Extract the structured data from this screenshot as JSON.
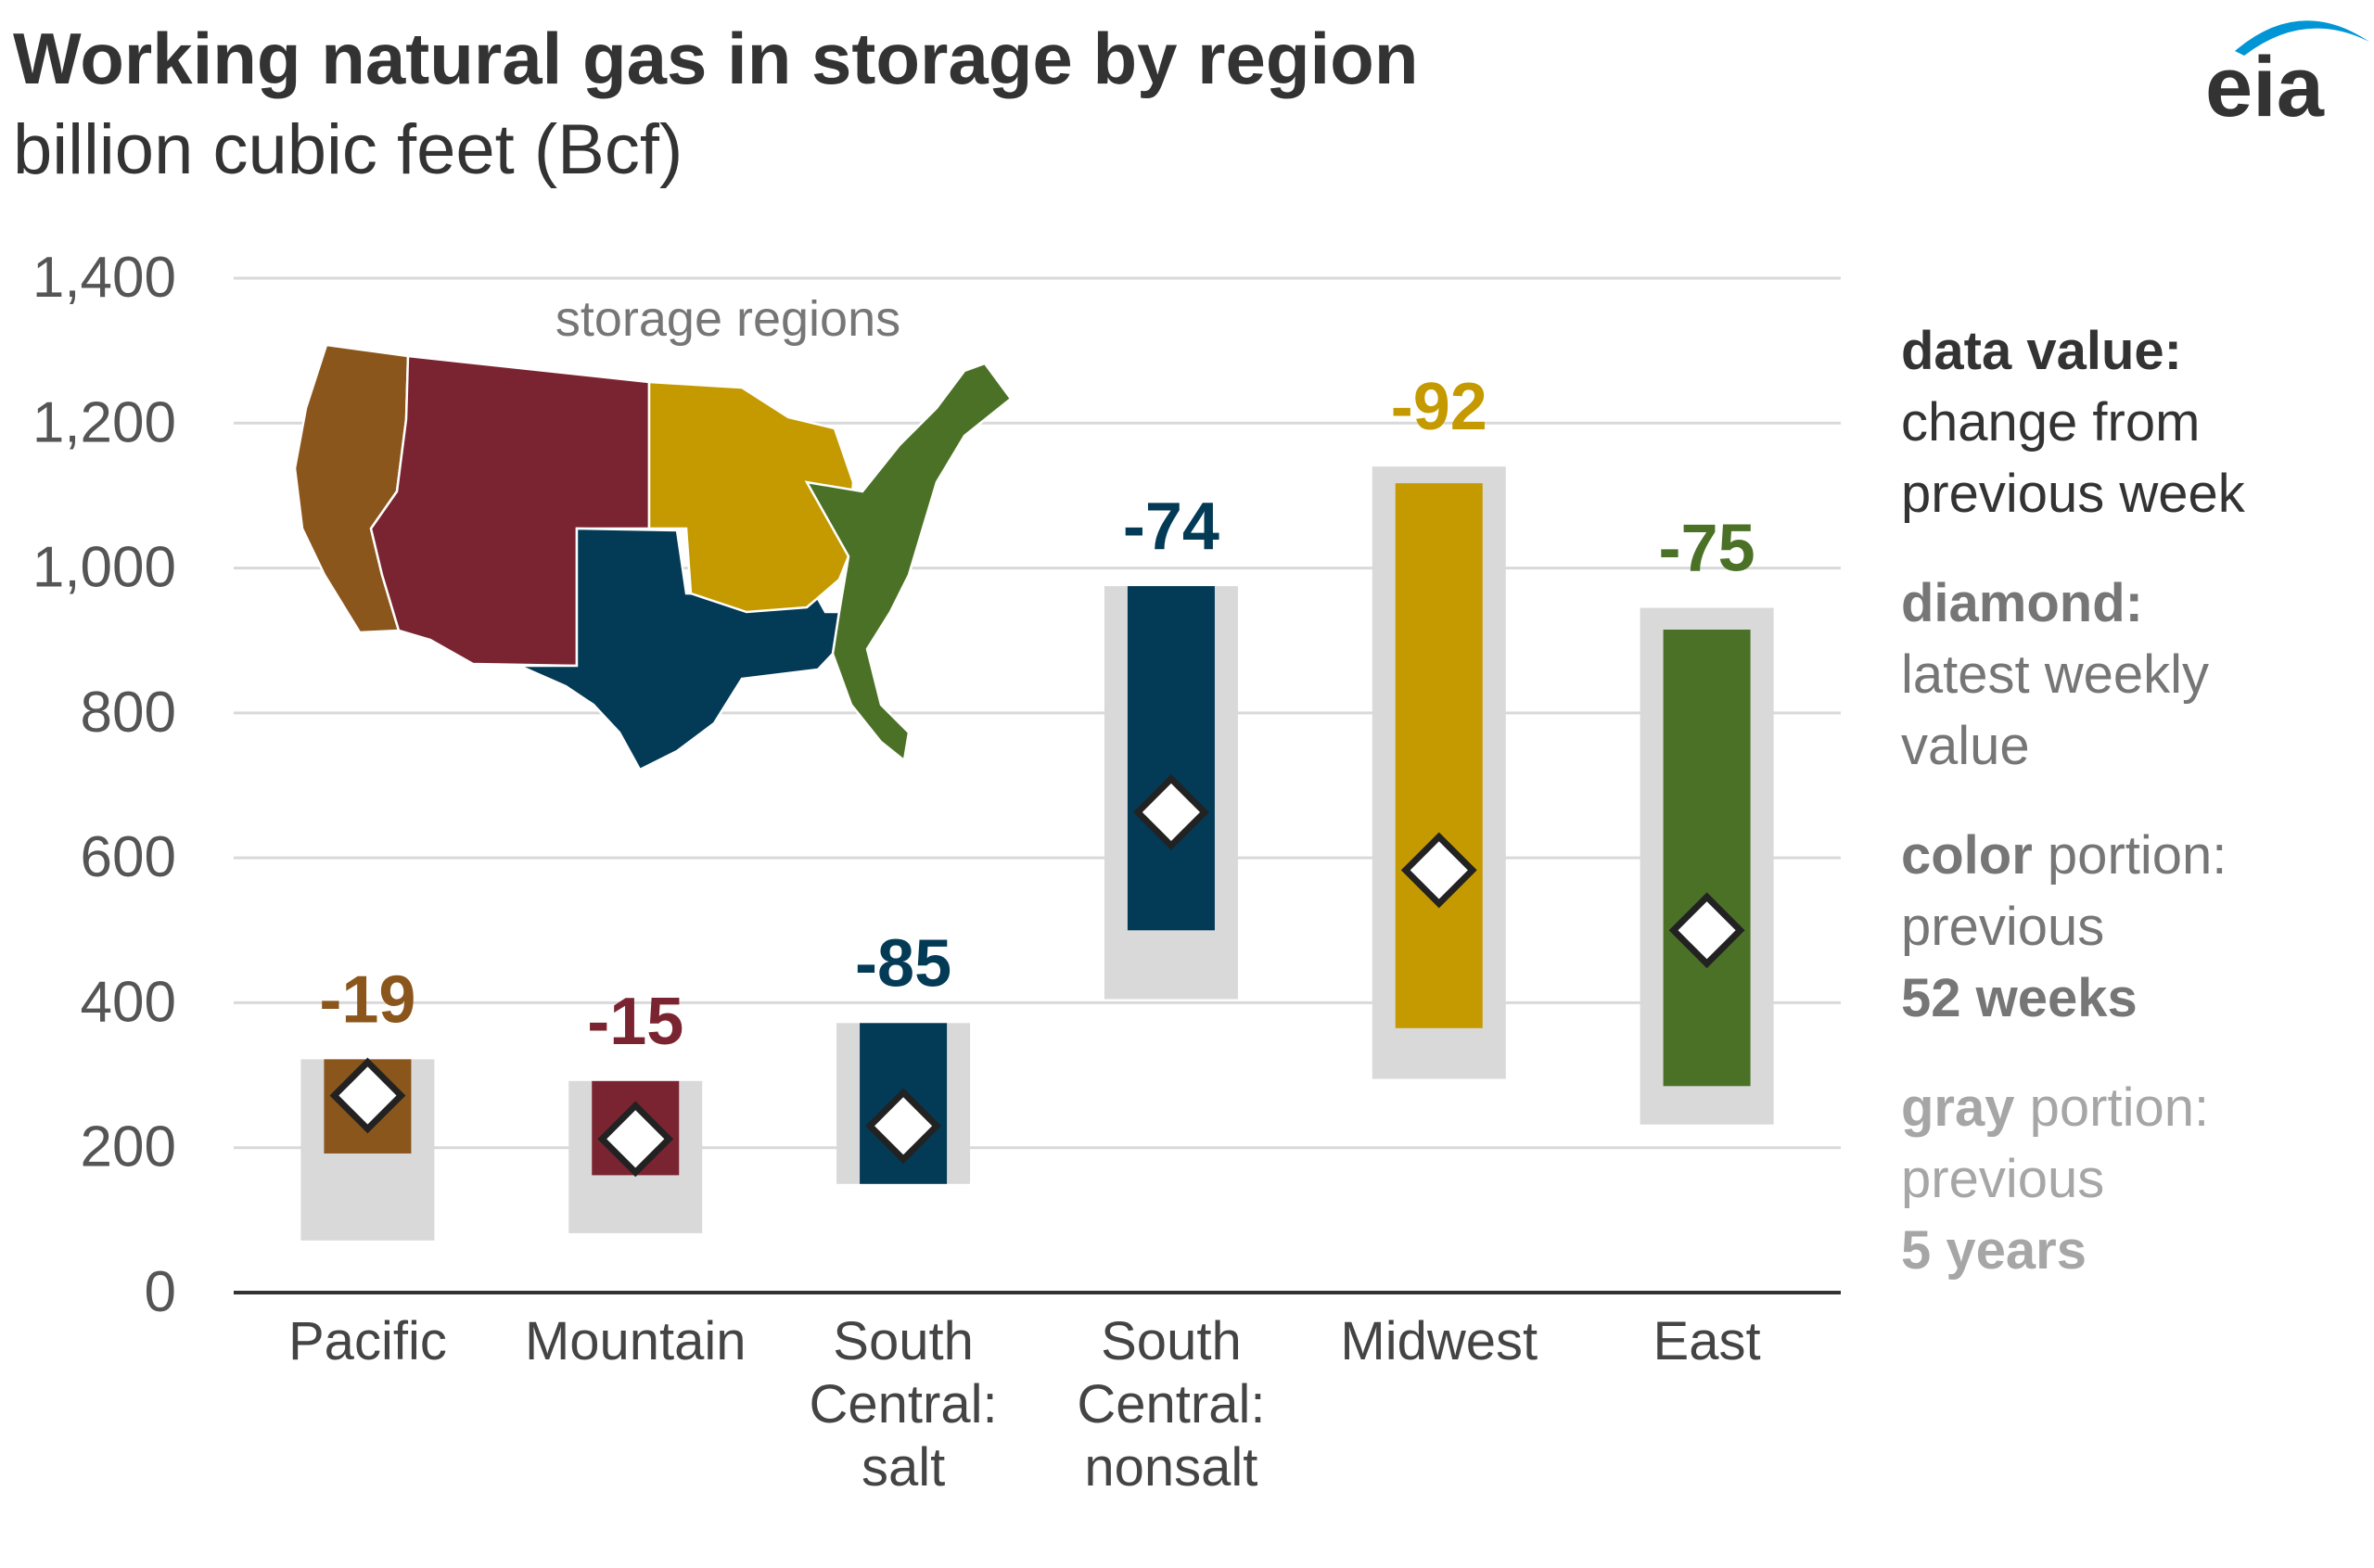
{
  "title": "Working natural gas in storage by region",
  "subtitle": "billion cubic feet (Bcf)",
  "logo_text": "eia",
  "map_label": "storage regions",
  "legend": {
    "item1": {
      "bold": "data value:",
      "line2": "change from",
      "line3": "previous week"
    },
    "item2": {
      "bold": "diamond:",
      "line2": "latest weekly",
      "line3": "value"
    },
    "item3": {
      "bold": "color",
      "rest": " portion:",
      "line2": "previous",
      "line3": "52 weeks"
    },
    "item4": {
      "bold": "gray",
      "rest": " portion:",
      "line2": "previous",
      "line3": "5 years"
    }
  },
  "colors": {
    "Pacific": "#8b561c",
    "Mountain": "#7b2431",
    "South Central": "#033a56",
    "Midwest": "#c49a00",
    "East": "#4b7127",
    "gray_band": "#d9d9d9",
    "grid": "#d9d9d9",
    "axis": "#333333"
  },
  "chart_data": {
    "type": "bar",
    "title": "Working natural gas in storage by region",
    "ylabel": "billion cubic feet (Bcf)",
    "ylim": [
      0,
      1400
    ],
    "yticks": [
      "0",
      "200",
      "400",
      "600",
      "800",
      "1,000",
      "1,200",
      "1,400"
    ],
    "grid": true,
    "legend_position": "right",
    "categories": [
      {
        "lines": [
          "Pacific"
        ]
      },
      {
        "lines": [
          "Mountain"
        ]
      },
      {
        "lines": [
          "South",
          "Central:",
          "salt"
        ]
      },
      {
        "lines": [
          "South",
          "Central:",
          "nonsalt"
        ]
      },
      {
        "lines": [
          "Midwest"
        ]
      },
      {
        "lines": [
          "East"
        ]
      }
    ],
    "series": [
      {
        "region": "Pacific",
        "five_year_range": [
          72,
          322
        ],
        "week52_range": [
          192,
          322
        ],
        "latest": 272,
        "change": "-19",
        "color": "#8b561c"
      },
      {
        "region": "Mountain",
        "five_year_range": [
          82,
          292
        ],
        "week52_range": [
          162,
          292
        ],
        "latest": 212,
        "change": "-15",
        "color": "#7b2431"
      },
      {
        "region": "South Central: salt",
        "five_year_range": [
          150,
          372
        ],
        "week52_range": [
          150,
          372
        ],
        "latest": 230,
        "change": "-85",
        "color": "#033a56"
      },
      {
        "region": "South Central: nonsalt",
        "five_year_range": [
          405,
          975
        ],
        "week52_range": [
          500,
          975
        ],
        "latest": 663,
        "change": "-74",
        "color": "#033a56"
      },
      {
        "region": "Midwest",
        "five_year_range": [
          295,
          1140
        ],
        "week52_range": [
          365,
          1117
        ],
        "latest": 583,
        "change": "-92",
        "color": "#c49a00"
      },
      {
        "region": "East",
        "five_year_range": [
          232,
          945
        ],
        "week52_range": [
          285,
          915
        ],
        "latest": 500,
        "change": "-75",
        "color": "#4b7127"
      }
    ]
  }
}
